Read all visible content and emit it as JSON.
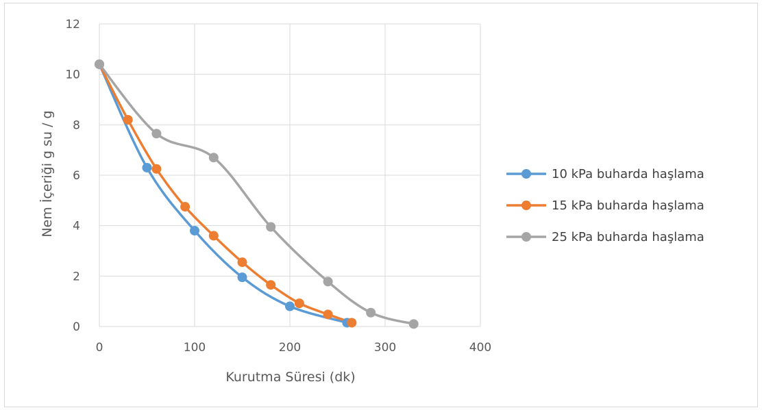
{
  "chart_data": {
    "type": "scatter",
    "title": "",
    "xlabel": "Kurutma Süresi (dk)",
    "ylabel": "Nem İçeriği g su / g",
    "xlim": [
      0,
      400
    ],
    "ylim": [
      0,
      12
    ],
    "x_ticks": [
      "0",
      "100",
      "200",
      "300",
      "400"
    ],
    "y_ticks": [
      "0",
      "2",
      "4",
      "6",
      "8",
      "10",
      "12"
    ],
    "grid": true,
    "smooth_lines": true,
    "legend_position": "right",
    "series": [
      {
        "name": "10 kPa buharda haşlama",
        "color": "#5b9bd5",
        "x": [
          0,
          50,
          100,
          150,
          200,
          260
        ],
        "y": [
          10.4,
          6.3,
          3.8,
          1.95,
          0.8,
          0.15
        ]
      },
      {
        "name": "15 kPa buharda haşlama",
        "color": "#ed7d31",
        "x": [
          0,
          30,
          60,
          90,
          120,
          150,
          180,
          210,
          240,
          265
        ],
        "y": [
          10.4,
          8.2,
          6.25,
          4.75,
          3.6,
          2.55,
          1.65,
          0.92,
          0.48,
          0.15
        ]
      },
      {
        "name": "25 kPa buharda haşlama",
        "color": "#a5a5a5",
        "x": [
          0,
          60,
          120,
          180,
          240,
          285,
          330
        ],
        "y": [
          10.4,
          7.65,
          6.7,
          3.95,
          1.78,
          0.55,
          0.1
        ]
      }
    ]
  }
}
